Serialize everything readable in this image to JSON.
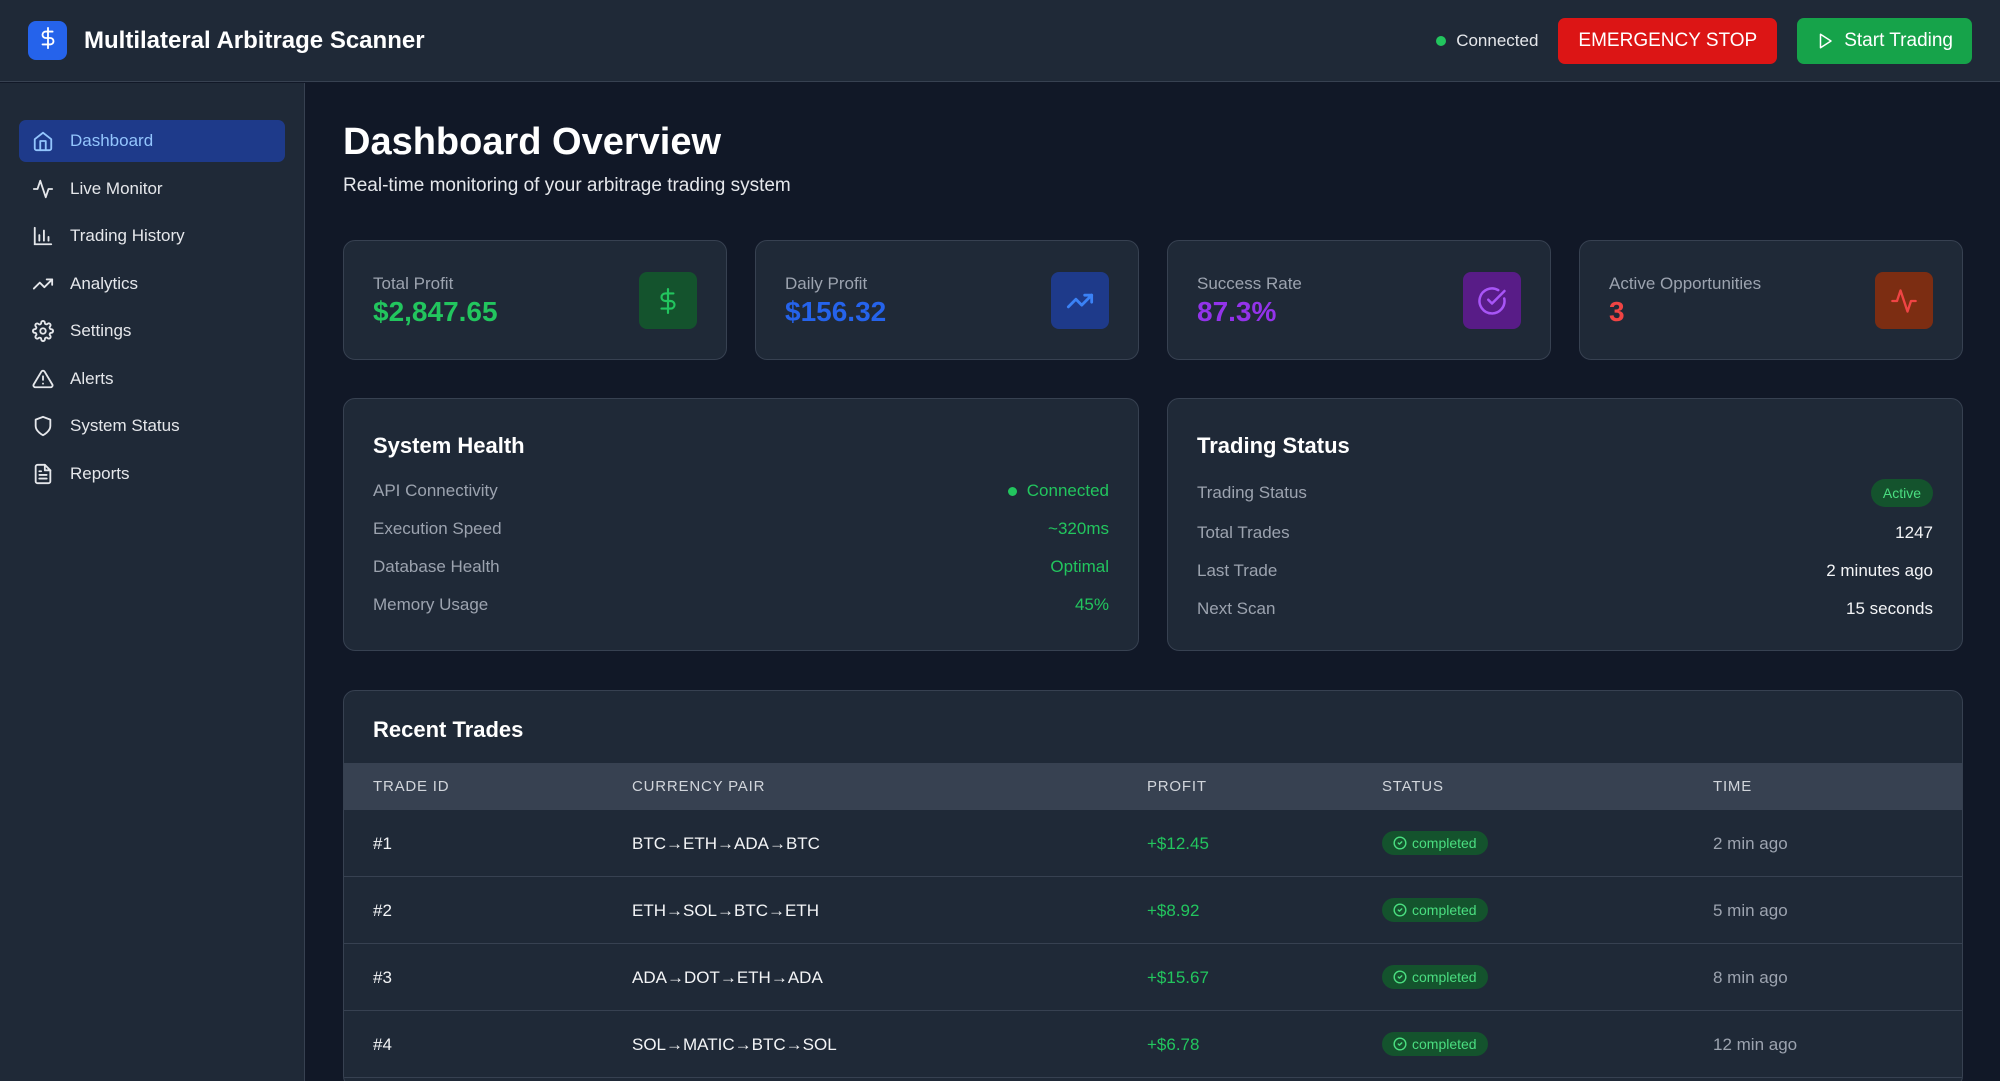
{
  "header": {
    "app_title": "Multilateral Arbitrage Scanner",
    "logo_icon": "dollar-icon",
    "connection_status": "Connected",
    "emergency_label": "EMERGENCY STOP",
    "start_label": "Start Trading",
    "colors": {
      "emergency": "#dc1515",
      "start": "#16a34a",
      "brand": "#2563eb"
    }
  },
  "sidebar": {
    "items": [
      {
        "label": "Dashboard",
        "icon": "home-icon",
        "active": true
      },
      {
        "label": "Live Monitor",
        "icon": "activity-icon",
        "active": false
      },
      {
        "label": "Trading History",
        "icon": "bar-chart-icon",
        "active": false
      },
      {
        "label": "Analytics",
        "icon": "trending-up-icon",
        "active": false
      },
      {
        "label": "Settings",
        "icon": "gear-icon",
        "active": false
      },
      {
        "label": "Alerts",
        "icon": "warning-icon",
        "active": false
      },
      {
        "label": "System Status",
        "icon": "shield-icon",
        "active": false
      },
      {
        "label": "Reports",
        "icon": "document-icon",
        "active": false
      }
    ]
  },
  "main": {
    "title": "Dashboard Overview",
    "subtitle": "Real-time monitoring of your arbitrage trading system"
  },
  "stats": [
    {
      "label": "Total Profit",
      "value": "$2,847.65",
      "icon": "dollar-icon",
      "color": "#22c55e"
    },
    {
      "label": "Daily Profit",
      "value": "$156.32",
      "icon": "trending-up-icon",
      "color": "#2563eb"
    },
    {
      "label": "Success Rate",
      "value": "87.3%",
      "icon": "check-circle-icon",
      "color": "#9333ea"
    },
    {
      "label": "Active Opportunities",
      "value": "3",
      "icon": "activity-icon",
      "color": "#ef4444"
    }
  ],
  "system_health": {
    "title": "System Health",
    "rows": [
      {
        "label": "API Connectivity",
        "value": "Connected"
      },
      {
        "label": "Execution Speed",
        "value": "~320ms"
      },
      {
        "label": "Database Health",
        "value": "Optimal"
      },
      {
        "label": "Memory Usage",
        "value": "45%"
      }
    ]
  },
  "trading_status": {
    "title": "Trading Status",
    "rows": [
      {
        "label": "Trading Status",
        "value": "Active"
      },
      {
        "label": "Total Trades",
        "value": "1247"
      },
      {
        "label": "Last Trade",
        "value": "2 minutes ago"
      },
      {
        "label": "Next Scan",
        "value": "15 seconds"
      }
    ]
  },
  "recent_trades": {
    "title": "Recent Trades",
    "columns": [
      "TRADE ID",
      "CURRENCY PAIR",
      "PROFIT",
      "STATUS",
      "TIME"
    ],
    "rows": [
      {
        "id": "#1",
        "pair": "BTC→ETH→ADA→BTC",
        "profit": "+$12.45",
        "status": "completed",
        "time": "2 min ago"
      },
      {
        "id": "#2",
        "pair": "ETH→SOL→BTC→ETH",
        "profit": "+$8.92",
        "status": "completed",
        "time": "5 min ago"
      },
      {
        "id": "#3",
        "pair": "ADA→DOT→ETH→ADA",
        "profit": "+$15.67",
        "status": "completed",
        "time": "8 min ago"
      },
      {
        "id": "#4",
        "pair": "SOL→MATIC→BTC→SOL",
        "profit": "+$6.78",
        "status": "completed",
        "time": "12 min ago"
      }
    ]
  }
}
